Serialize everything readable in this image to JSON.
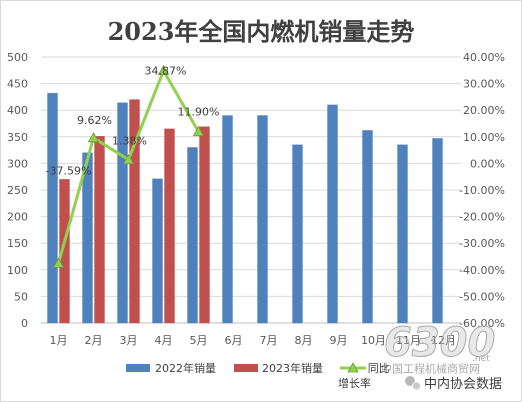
{
  "chart_data": {
    "type": "bar",
    "title": "2023年全国内燃机销量走势",
    "categories": [
      "1月",
      "2月",
      "3月",
      "4月",
      "5月",
      "6月",
      "7月",
      "8月",
      "9月",
      "10月",
      "11月",
      "12月"
    ],
    "series": [
      {
        "name": "2022年销量",
        "type": "bar",
        "axis": "left",
        "color": "#4F81BD",
        "values": [
          432,
          320,
          414,
          271,
          330,
          390,
          390,
          335,
          410,
          362,
          335,
          347
        ]
      },
      {
        "name": "2023年销量",
        "type": "bar",
        "axis": "left",
        "color": "#C0504D",
        "values": [
          270,
          351,
          420,
          365,
          369,
          null,
          null,
          null,
          null,
          null,
          null,
          null
        ]
      },
      {
        "name": "同比增长率",
        "type": "line",
        "axis": "right",
        "unit": "%",
        "color": "#92D050",
        "values": [
          -37.59,
          9.62,
          1.38,
          34.87,
          11.9,
          null,
          null,
          null,
          null,
          null,
          null,
          null
        ],
        "data_labels": [
          "-37.59%",
          "9.62%",
          "1.38%",
          "34.87%",
          "11.90%"
        ]
      }
    ],
    "ylim": [
      0,
      500
    ],
    "y_ticks": [
      0,
      50,
      100,
      150,
      200,
      250,
      300,
      350,
      400,
      450,
      500
    ],
    "y2lim": [
      -60,
      40
    ],
    "y2_ticks": [
      -60,
      -50,
      -40,
      -30,
      -20,
      -10,
      0,
      10,
      20,
      30,
      40
    ],
    "y2_tick_labels": [
      "-60.00%",
      "-50.00%",
      "-40.00%",
      "-30.00%",
      "-20.00%",
      "-10.00%",
      "0.00%",
      "10.00%",
      "20.00%",
      "30.00%",
      "40.00%"
    ],
    "grid": true,
    "legend": "bottom"
  },
  "watermark": {
    "logo_text": "6300",
    "logo_suffix": ".net",
    "site_name": "中国工程机械商贸网",
    "source_text": "中内协会数据",
    "icon": "wechat-icon"
  }
}
